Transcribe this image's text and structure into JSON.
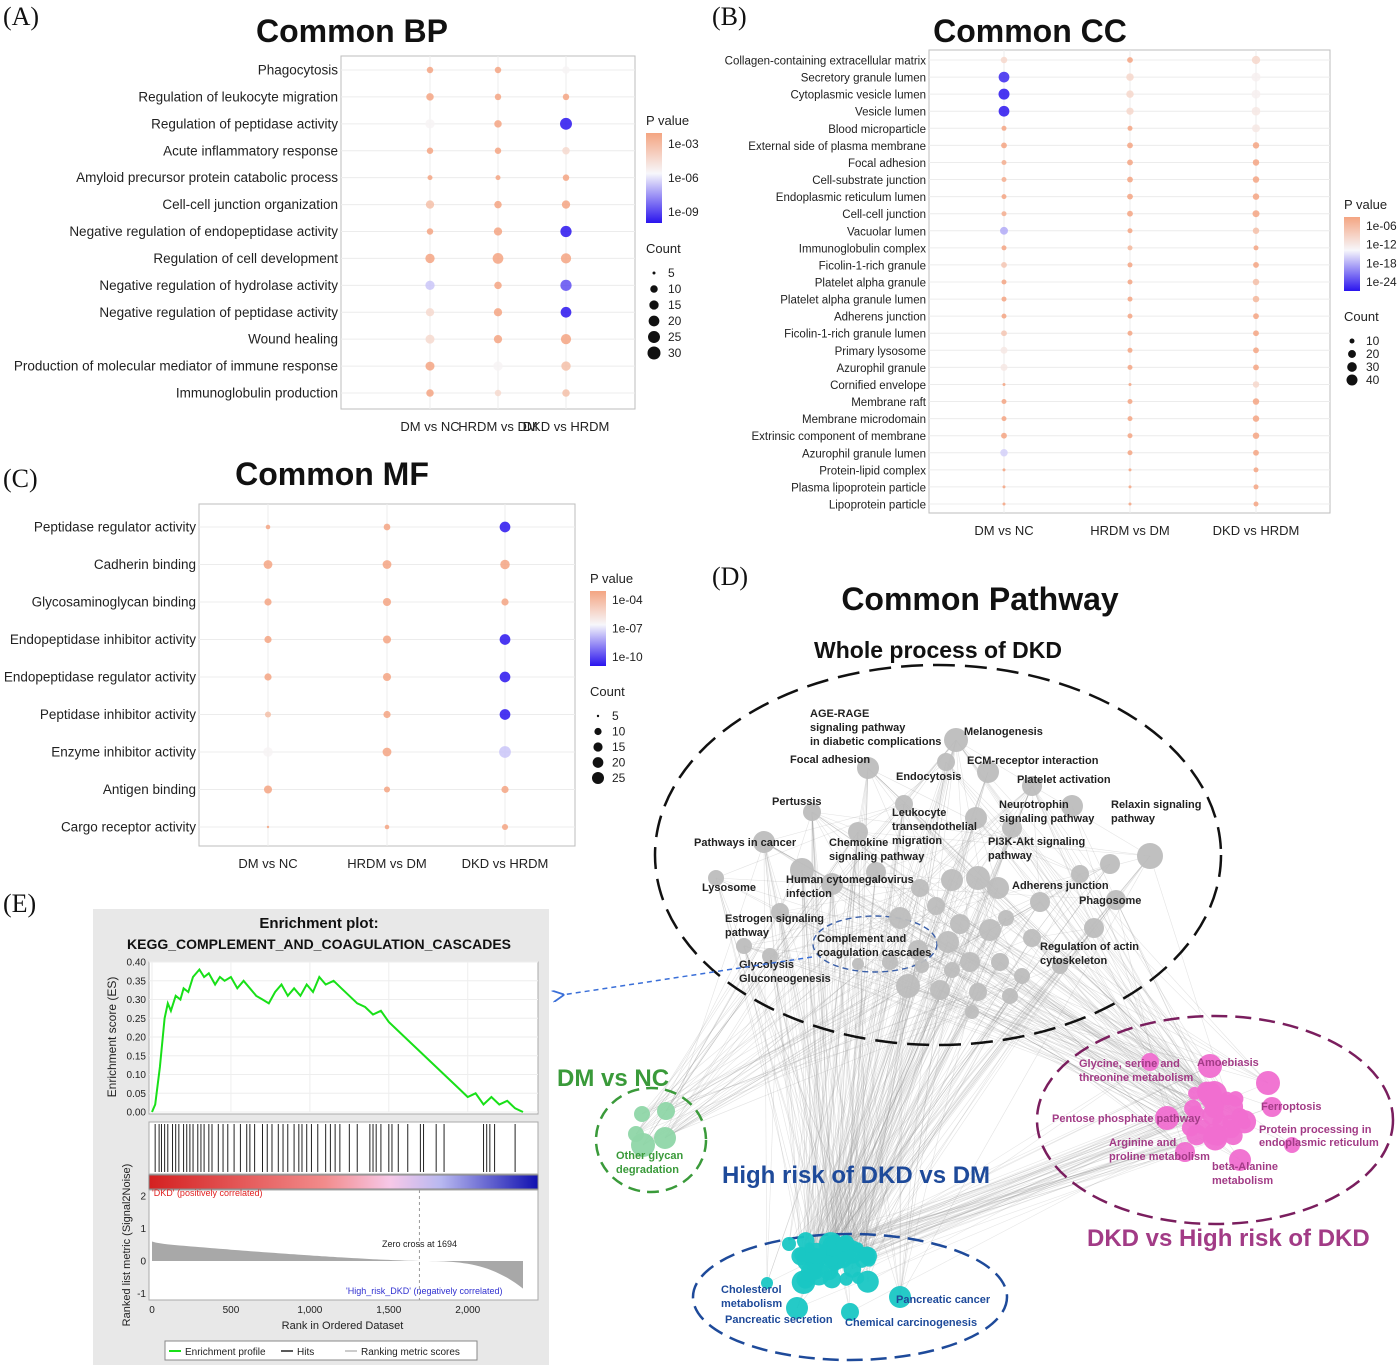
{
  "panels": {
    "A": "(A)",
    "B": "(B)",
    "C": "(C)",
    "D": "(D)",
    "E": "(E)"
  },
  "chart_data": [
    {
      "type": "scatter",
      "title": "Common BP",
      "columns": [
        "DM vs NC",
        "HRDM vs DM",
        "DKD vs HRDM"
      ],
      "terms": [
        "Phagocytosis",
        "Regulation of leukocyte migration",
        "Regulation of peptidase activity",
        "Acute inflammatory response",
        "Amyloid precursor protein catabolic process",
        "Cell-cell junction organization",
        "Negative regulation of endopeptidase activity",
        "Regulation of cell development",
        "Negative regulation of hydrolase activity",
        "Negative regulation of peptidase activity",
        "Wound healing",
        "Production of molecular mediator of immune response",
        "Immunoglobulin production"
      ],
      "pvalue_exponent": [
        [
          -3,
          -3,
          -6
        ],
        [
          -3,
          -3,
          -3
        ],
        [
          -6,
          -3,
          -10
        ],
        [
          -3,
          -3,
          -5
        ],
        [
          -3,
          -3,
          -3
        ],
        [
          -4,
          -3,
          -3
        ],
        [
          -3,
          -3,
          -10
        ],
        [
          -3,
          -3,
          -3
        ],
        [
          -7,
          -3,
          -9
        ],
        [
          -5,
          -3,
          -10
        ],
        [
          -5,
          -3,
          -3
        ],
        [
          -3,
          -6,
          -4
        ],
        [
          -3,
          -5,
          -4
        ]
      ],
      "count": [
        [
          8,
          8,
          10
        ],
        [
          10,
          8,
          8
        ],
        [
          15,
          10,
          25
        ],
        [
          8,
          8,
          10
        ],
        [
          6,
          6,
          8
        ],
        [
          12,
          10,
          12
        ],
        [
          8,
          12,
          22
        ],
        [
          15,
          20,
          18
        ],
        [
          15,
          10,
          22
        ],
        [
          12,
          12,
          20
        ],
        [
          14,
          12,
          18
        ],
        [
          14,
          15,
          15
        ],
        [
          10,
          8,
          10
        ]
      ],
      "legend_color_title": "P value",
      "legend_color_ticks": [
        "1e-03",
        "1e-06",
        "1e-09"
      ],
      "legend_size_title": "Count",
      "legend_size_ticks": [
        5,
        10,
        15,
        20,
        25,
        30
      ]
    },
    {
      "type": "scatter",
      "title": "Common CC",
      "columns": [
        "DM vs NC",
        "HRDM vs DM",
        "DKD vs HRDM"
      ],
      "terms": [
        "Collagen-containing extracellular matrix",
        "Secretory granule lumen",
        "Cytoplasmic vesicle lumen",
        "Vesicle lumen",
        "Blood microparticle",
        "External side of plasma membrane",
        "Focal adhesion",
        "Cell-substrate junction",
        "Endoplasmic reticulum lumen",
        "Cell-cell junction",
        "Vacuolar lumen",
        "Immunoglobulin complex",
        "Ficolin-1-rich granule",
        "Platelet alpha granule",
        "Platelet alpha granule lumen",
        "Adherens junction",
        "Ficolin-1-rich granule lumen",
        "Primary lysosome",
        "Azurophil granule",
        "Cornified envelope",
        "Membrane raft",
        "Membrane microdomain",
        "Extrinsic component of membrane",
        "Azurophil granule lumen",
        "Protein-lipid complex",
        "Plasma lipoprotein particle",
        "Lipoprotein particle"
      ],
      "pvalue_exponent": [
        [
          -12,
          -6,
          -12
        ],
        [
          -27,
          -12,
          -15
        ],
        [
          -28,
          -12,
          -15
        ],
        [
          -28,
          -12,
          -14
        ],
        [
          -6,
          -6,
          -14
        ],
        [
          -6,
          -6,
          -6
        ],
        [
          -7,
          -6,
          -6
        ],
        [
          -7,
          -6,
          -6
        ],
        [
          -6,
          -6,
          -6
        ],
        [
          -7,
          -6,
          -6
        ],
        [
          -20,
          -6,
          -9
        ],
        [
          -6,
          -8,
          -6
        ],
        [
          -10,
          -6,
          -6
        ],
        [
          -6,
          -6,
          -9
        ],
        [
          -6,
          -6,
          -8
        ],
        [
          -6,
          -6,
          -6
        ],
        [
          -10,
          -6,
          -6
        ],
        [
          -14,
          -6,
          -6
        ],
        [
          -14,
          -6,
          -6
        ],
        [
          -6,
          -6,
          -12
        ],
        [
          -6,
          -6,
          -6
        ],
        [
          -6,
          -6,
          -6
        ],
        [
          -6,
          -6,
          -6
        ],
        [
          -18,
          -6,
          -6
        ],
        [
          -6,
          -6,
          -6
        ],
        [
          -6,
          -6,
          -6
        ],
        [
          -6,
          -6,
          -6
        ]
      ],
      "count": [
        [
          14,
          12,
          22
        ],
        [
          38,
          18,
          26
        ],
        [
          40,
          18,
          25
        ],
        [
          38,
          17,
          24
        ],
        [
          10,
          10,
          20
        ],
        [
          12,
          12,
          14
        ],
        [
          10,
          12,
          14
        ],
        [
          10,
          12,
          14
        ],
        [
          10,
          12,
          14
        ],
        [
          10,
          12,
          16
        ],
        [
          20,
          10,
          14
        ],
        [
          10,
          10,
          10
        ],
        [
          12,
          10,
          12
        ],
        [
          10,
          10,
          14
        ],
        [
          10,
          10,
          14
        ],
        [
          10,
          10,
          12
        ],
        [
          12,
          10,
          12
        ],
        [
          16,
          10,
          12
        ],
        [
          16,
          10,
          12
        ],
        [
          8,
          8,
          14
        ],
        [
          10,
          10,
          14
        ],
        [
          10,
          10,
          14
        ],
        [
          12,
          10,
          14
        ],
        [
          18,
          10,
          12
        ],
        [
          8,
          8,
          10
        ],
        [
          8,
          8,
          10
        ],
        [
          8,
          8,
          10
        ]
      ],
      "legend_color_title": "P value",
      "legend_color_ticks": [
        "1e-06",
        "1e-12",
        "1e-18",
        "1e-24"
      ],
      "legend_size_title": "Count",
      "legend_size_ticks": [
        10,
        20,
        30,
        40
      ]
    },
    {
      "type": "scatter",
      "title": "Common MF",
      "columns": [
        "DM vs NC",
        "HRDM vs DM",
        "DKD vs HRDM"
      ],
      "terms": [
        "Peptidase regulator activity",
        "Cadherin binding",
        "Glycosaminoglycan binding",
        "Endopeptidase inhibitor activity",
        "Endopeptidase regulator activity",
        "Peptidase inhibitor activity",
        "Enzyme inhibitor activity",
        "Antigen binding",
        "Cargo receptor activity"
      ],
      "pvalue_exponent": [
        [
          -4,
          -4,
          -11
        ],
        [
          -4,
          -4,
          -4
        ],
        [
          -4,
          -4,
          -4
        ],
        [
          -4,
          -4,
          -11
        ],
        [
          -4,
          -4,
          -11
        ],
        [
          -5,
          -4,
          -11
        ],
        [
          -7,
          -4,
          -8
        ],
        [
          -4,
          -4,
          -4
        ],
        [
          -4,
          -4,
          -4
        ]
      ],
      "count": [
        [
          6,
          9,
          20
        ],
        [
          14,
          14,
          16
        ],
        [
          10,
          12,
          10
        ],
        [
          10,
          12,
          20
        ],
        [
          10,
          12,
          20
        ],
        [
          8,
          10,
          20
        ],
        [
          16,
          14,
          24
        ],
        [
          12,
          8,
          10
        ],
        [
          5,
          6,
          8
        ]
      ],
      "legend_color_title": "P value",
      "legend_color_ticks": [
        "1e-04",
        "1e-07",
        "1e-10"
      ],
      "legend_size_title": "Count",
      "legend_size_ticks": [
        5,
        10,
        15,
        20,
        25
      ]
    },
    {
      "type": "line",
      "title": "Enrichment plot:",
      "subtitle": "KEGG_COMPLEMENT_AND_COAGULATION_CASCADES",
      "xlabel": "Rank in Ordered Dataset",
      "ylabel": "Enrichment score (ES)",
      "ylabel2": "Ranked list metric (Signal2Noise)",
      "xlim": [
        0,
        2350
      ],
      "ylim": [
        0,
        0.4
      ],
      "x_ticks": [
        "0",
        "500",
        "1,000",
        "1,500",
        "2,000"
      ],
      "y_ticks": [
        "0.00",
        "0.05",
        "0.10",
        "0.15",
        "0.20",
        "0.25",
        "0.30",
        "0.35",
        "0.40"
      ],
      "y2_ticks": [
        "2",
        "1",
        "0",
        "-1"
      ],
      "x": [
        0,
        20,
        50,
        80,
        100,
        120,
        150,
        180,
        200,
        230,
        260,
        300,
        330,
        360,
        400,
        430,
        460,
        500,
        540,
        580,
        620,
        660,
        700,
        740,
        780,
        820,
        860,
        900,
        940,
        980,
        1020,
        1060,
        1100,
        1150,
        1200,
        1250,
        1300,
        1350,
        1400,
        1450,
        1500,
        1550,
        1600,
        1650,
        1700,
        1750,
        1800,
        1850,
        1900,
        1950,
        2000,
        2050,
        2100,
        2150,
        2200,
        2250,
        2300,
        2350
      ],
      "y": [
        0.0,
        0.02,
        0.12,
        0.25,
        0.29,
        0.27,
        0.31,
        0.3,
        0.33,
        0.32,
        0.36,
        0.38,
        0.36,
        0.37,
        0.34,
        0.36,
        0.35,
        0.36,
        0.33,
        0.35,
        0.33,
        0.31,
        0.3,
        0.29,
        0.32,
        0.34,
        0.31,
        0.33,
        0.31,
        0.34,
        0.32,
        0.36,
        0.34,
        0.35,
        0.33,
        0.31,
        0.29,
        0.28,
        0.26,
        0.27,
        0.24,
        0.22,
        0.2,
        0.18,
        0.16,
        0.14,
        0.12,
        0.1,
        0.08,
        0.06,
        0.04,
        0.05,
        0.02,
        0.04,
        0.02,
        0.03,
        0.01,
        0.0
      ],
      "hits": [
        20,
        45,
        60,
        80,
        100,
        130,
        150,
        170,
        200,
        220,
        240,
        260,
        290,
        310,
        330,
        360,
        380,
        420,
        450,
        480,
        520,
        560,
        600,
        620,
        650,
        700,
        730,
        760,
        800,
        830,
        860,
        900,
        930,
        950,
        980,
        1010,
        1050,
        1100,
        1130,
        1160,
        1190,
        1250,
        1300,
        1380,
        1400,
        1420,
        1450,
        1500,
        1520,
        1560,
        1620,
        1700,
        1720,
        1800,
        1850,
        2100,
        2120,
        2140,
        2170,
        2300
      ],
      "legend": [
        "Enrichment profile",
        "Hits",
        "Ranking metric scores"
      ],
      "annotations": [
        "'DKD' (positively correlated)",
        "Zero cross at 1694",
        "'High_risk_DKD' (negatively correlated)"
      ]
    }
  ],
  "network": {
    "title": "Common Pathway",
    "subtitle": "Whole process of DKD",
    "groups": {
      "dm_nc": "DM vs NC",
      "high_risk": "High risk of DKD vs DM",
      "dkd_hr": "DKD vs High risk of DKD"
    },
    "colors": {
      "whole": "#bdbdbd",
      "dm_nc": "#8fd6a8",
      "high_risk": "#19c7c4",
      "dkd_hr": "#f06ed0",
      "black": "#111111",
      "green": "#3a9a3a",
      "blue": "#1e4a9a",
      "purple": "#a23b86"
    },
    "labels": {
      "age_rage_1": "AGE-RAGE",
      "age_rage_2": "signaling pathway",
      "age_rage_3": "in diabetic complications",
      "melanogenesis": "Melanogenesis",
      "focal_adhesion": "Focal adhesion",
      "endocytosis": "Endocytosis",
      "ecm": "ECM-receptor interaction",
      "platelet": "Platelet activation",
      "pertussis": "Pertussis",
      "leuko_1": "Leukocyte",
      "leuko_2": "transendothelial",
      "leuko_3": "migration",
      "neuro_1": "Neurotrophin",
      "neuro_2": "signaling pathway",
      "relaxin_1": "Relaxin signaling",
      "relaxin_2": "pathway",
      "cancer": "Pathways in cancer",
      "chemo_1": "Chemokine",
      "chemo_2": "signaling pathway",
      "pi3k_1": "PI3K-Akt signaling",
      "pi3k_2": "pathway",
      "hcmv_1": "Human cytomegalovirus",
      "hcmv_2": "infection",
      "lysosome": "Lysosome",
      "adherens": "Adherens junction",
      "phagosome": "Phagosome",
      "estrogen_1": "Estrogen signaling",
      "estrogen_2": "pathway",
      "complement_1": "Complement and",
      "complement_2": "coagulation cascades",
      "actin_1": "Regulation of actin",
      "actin_2": "cytoskeleton",
      "glyco_1": "Glycolysis",
      "glyco_2": "Gluconeogenesis",
      "glycan_1": "Other glycan",
      "glycan_2": "degradation",
      "glycine_1": "Glycine, serine and",
      "glycine_2": "threonine metabolism",
      "amoebiasis": "Amoebiasis",
      "pentose": "Pentose phosphate pathway",
      "ferroptosis": "Ferroptosis",
      "arginine_1": "Arginine and",
      "arginine_2": "proline metabolism",
      "protein_1": "Protein processing in",
      "protein_2": "endoplasmic reticulum",
      "beta_1": "beta-Alanine",
      "beta_2": "metabolism",
      "chol_1": "Cholesterol",
      "chol_2": "metabolism",
      "pancreatic_cancer": "Pancreatic cancer",
      "pancreatic_secretion": "Pancreatic secretion",
      "chemical": "Chemical carcinogenesis"
    }
  }
}
